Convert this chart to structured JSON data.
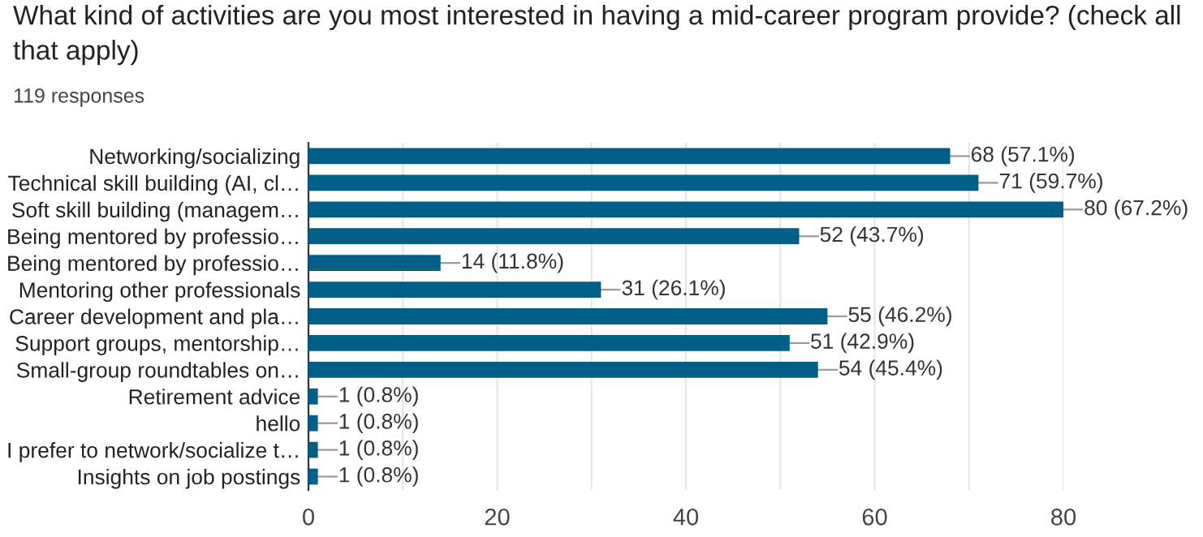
{
  "chart_data": {
    "type": "bar",
    "orientation": "horizontal",
    "title": "What kind of activities are you most interested in having a mid-career program provide? (check all that apply)",
    "subtitle": "119 responses",
    "categories": [
      "Networking/socializing",
      "Technical skill building (AI, cl…",
      "Soft skill building (managem…",
      "Being mentored by professio…",
      "Being mentored by professio…",
      "Mentoring other professionals",
      "Career development and pla…",
      "Support groups, mentorship…",
      "Small-group roundtables on…",
      "Retirement advice",
      "hello",
      "I prefer to network/socialize t…",
      "Insights on job postings"
    ],
    "values": [
      68,
      71,
      80,
      52,
      14,
      31,
      55,
      51,
      54,
      1,
      1,
      1,
      1
    ],
    "value_labels": [
      "68 (57.1%)",
      "71 (59.7%)",
      "80 (67.2%)",
      "52 (43.7%)",
      "14 (11.8%)",
      "31 (26.1%)",
      "55 (46.2%)",
      "51 (42.9%)",
      "54 (45.4%)",
      "1 (0.8%)",
      "1 (0.8%)",
      "1 (0.8%)",
      "1 (0.8%)"
    ],
    "color": "#005f86",
    "xlim": [
      0,
      80
    ],
    "xticks": [
      0,
      {
        "value": 10,
        "label": null
      },
      20,
      {
        "value": 30,
        "label": null
      },
      40,
      {
        "value": 50,
        "label": null
      },
      60,
      {
        "value": 70,
        "label": null
      },
      80
    ],
    "grid": "x"
  }
}
